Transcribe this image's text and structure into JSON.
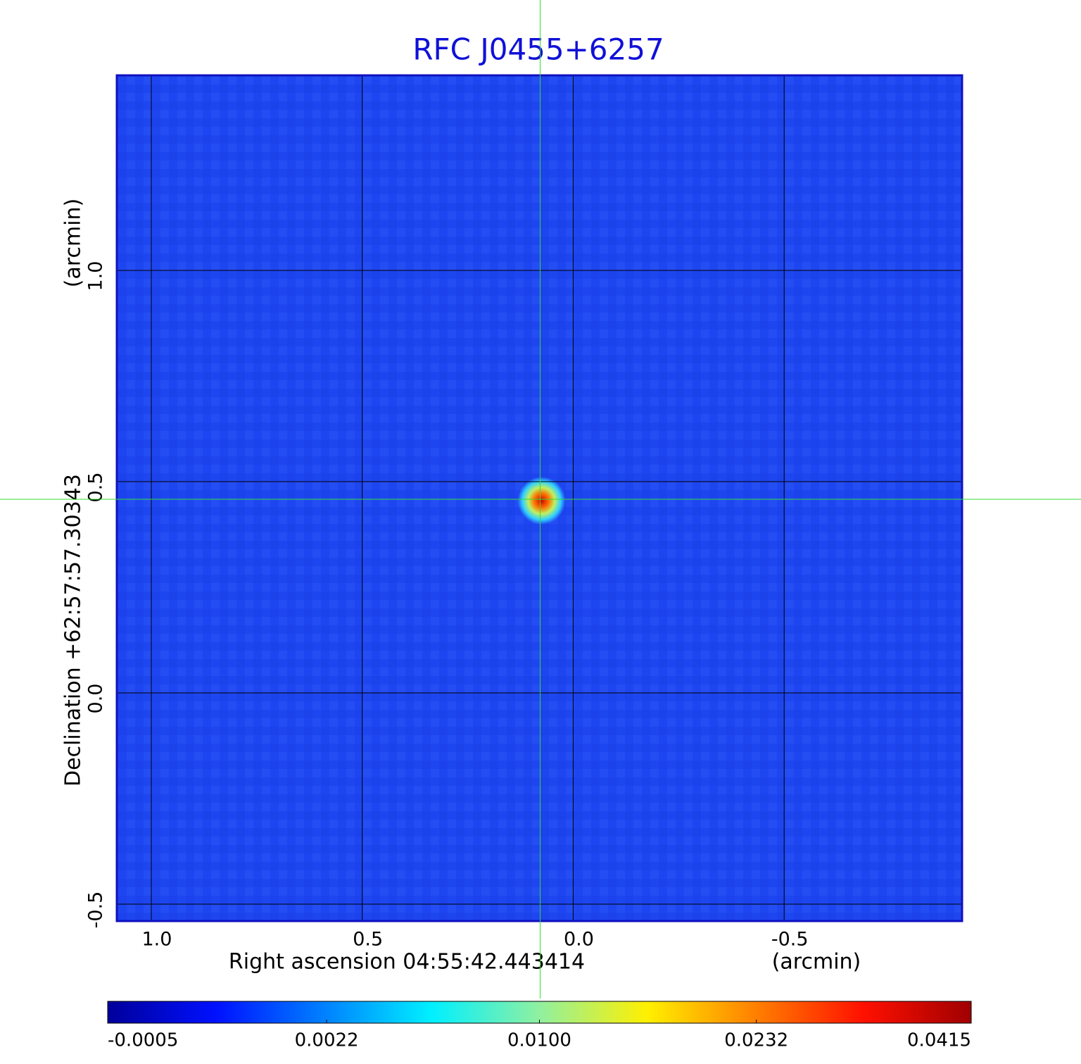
{
  "chart_data": {
    "type": "image",
    "title": "RFC J0455+6257",
    "title_color": "#1010d8",
    "xlabel": "Right ascension  04:55:42.443414",
    "xunit": "(arcmin)",
    "ylabel": "Declination  +62:57:57.30343",
    "yunit": "(arcmin)",
    "xlim": [
      1.0817,
      -0.9217
    ],
    "ylim": [
      -0.54,
      1.4617
    ],
    "xticks": [
      {
        "value": 1.0,
        "label": "1.0"
      },
      {
        "value": 0.5,
        "label": "0.5"
      },
      {
        "value": 0.0,
        "label": "0.0"
      },
      {
        "value": -0.5,
        "label": "-0.5"
      }
    ],
    "yticks": [
      {
        "value": -0.5,
        "label": "-0.5"
      },
      {
        "value": 0.0,
        "label": "0.0"
      },
      {
        "value": 0.5,
        "label": "0.5"
      },
      {
        "value": 1.0,
        "label": "1.0"
      }
    ],
    "grid": true,
    "background_color": "#1e46f0",
    "crosshair": {
      "x": 0.0783,
      "y": 0.4583,
      "color": "#33dd33"
    },
    "source": {
      "x": 0.075,
      "y": 0.455,
      "peak": 0.0415
    },
    "colormap": "jet",
    "colorbar_scale": "sqrt",
    "clim": [
      -0.0005,
      0.0415
    ],
    "colorbar_ticks": [
      -0.0005,
      0.0022,
      {
        "value": 0.01,
        "label": "0.0100"
      },
      0.0232,
      0.0415
    ]
  }
}
